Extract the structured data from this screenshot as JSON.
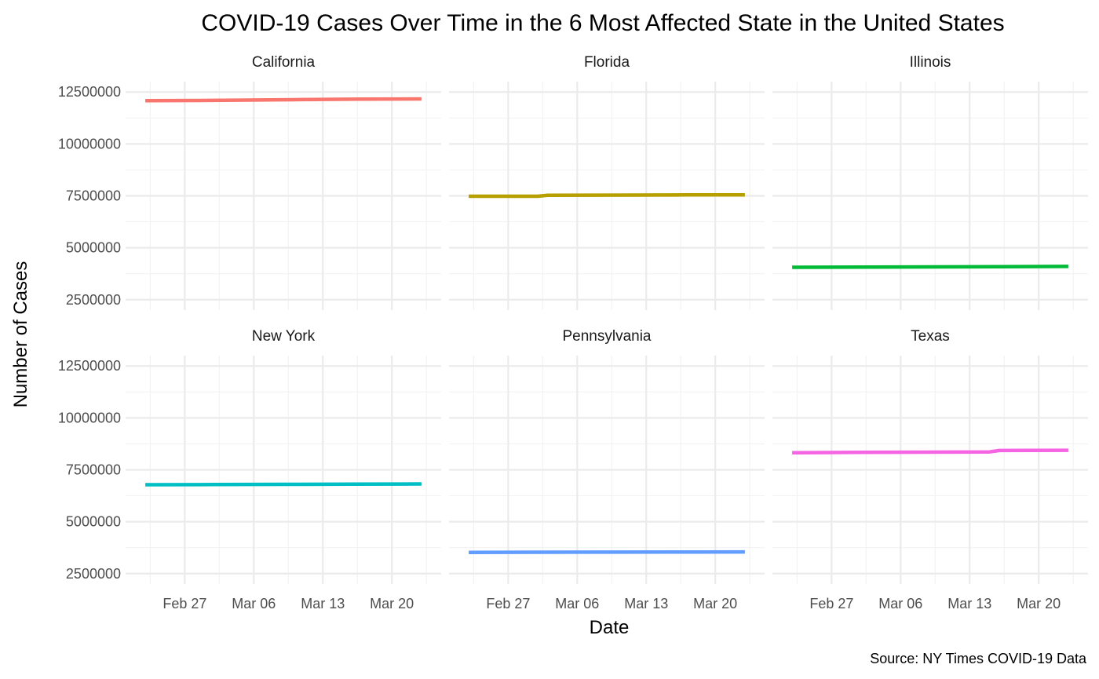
{
  "chart_data": {
    "type": "line",
    "title": "COVID-19 Cases Over Time in the 6 Most Affected State in the United States",
    "xlabel": "Date",
    "ylabel": "Number of Cases",
    "caption": "Source: NY Times COVID-19 Data",
    "facet_layout": "2 rows x 3 columns, shared axes",
    "x_ticks": [
      "2023-02-27",
      "2023-03-06",
      "2023-03-13",
      "2023-03-20"
    ],
    "x_tick_labels": [
      "Feb 27",
      "Mar 06",
      "Mar 13",
      "Mar 20"
    ],
    "x_range": [
      "2023-02-21",
      "2023-03-25"
    ],
    "y_ticks": [
      2500000,
      5000000,
      7500000,
      10000000,
      12500000
    ],
    "y_tick_labels": [
      "2500000",
      "5000000",
      "7500000",
      "10000000",
      "12500000"
    ],
    "ylim": [
      2000000,
      13000000
    ],
    "grid": true,
    "legend": "none",
    "panels": [
      {
        "name": "California",
        "color": "#F8766D",
        "points": [
          [
            "2023-02-23",
            12080000
          ],
          [
            "2023-03-03",
            12100000
          ],
          [
            "2023-03-10",
            12130000
          ],
          [
            "2023-03-17",
            12160000
          ],
          [
            "2023-03-23",
            12170000
          ]
        ]
      },
      {
        "name": "Florida",
        "color": "#B79F00",
        "points": [
          [
            "2023-02-23",
            7480000
          ],
          [
            "2023-03-02",
            7480000
          ],
          [
            "2023-03-03",
            7530000
          ],
          [
            "2023-03-16",
            7540000
          ],
          [
            "2023-03-17",
            7550000
          ],
          [
            "2023-03-23",
            7550000
          ]
        ]
      },
      {
        "name": "Illinois",
        "color": "#00BA38",
        "points": [
          [
            "2023-02-23",
            4060000
          ],
          [
            "2023-03-02",
            4070000
          ],
          [
            "2023-03-09",
            4080000
          ],
          [
            "2023-03-16",
            4090000
          ],
          [
            "2023-03-23",
            4100000
          ]
        ]
      },
      {
        "name": "New York",
        "color": "#00BFC4",
        "points": [
          [
            "2023-02-23",
            6780000
          ],
          [
            "2023-03-02",
            6790000
          ],
          [
            "2023-03-09",
            6800000
          ],
          [
            "2023-03-16",
            6810000
          ],
          [
            "2023-03-23",
            6820000
          ]
        ]
      },
      {
        "name": "Pennsylvania",
        "color": "#619CFF",
        "points": [
          [
            "2023-02-23",
            3520000
          ],
          [
            "2023-03-02",
            3530000
          ],
          [
            "2023-03-09",
            3535000
          ],
          [
            "2023-03-16",
            3540000
          ],
          [
            "2023-03-23",
            3545000
          ]
        ]
      },
      {
        "name": "Texas",
        "color": "#F564E3",
        "points": [
          [
            "2023-02-23",
            8320000
          ],
          [
            "2023-03-02",
            8340000
          ],
          [
            "2023-03-09",
            8350000
          ],
          [
            "2023-03-15",
            8360000
          ],
          [
            "2023-03-16",
            8430000
          ],
          [
            "2023-03-23",
            8440000
          ]
        ]
      }
    ]
  }
}
